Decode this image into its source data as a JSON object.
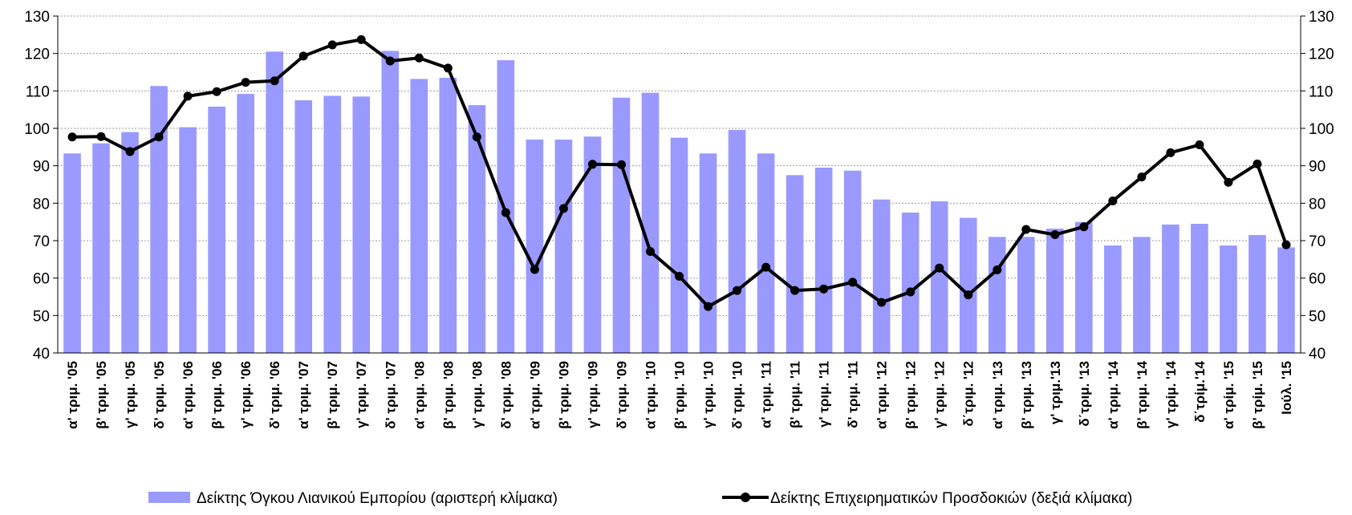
{
  "chart_data": {
    "type": "bar-line",
    "categories": [
      "α' τριμ. '05",
      "β' τριμ. '05",
      "γ' τριμ. '05",
      "δ' τριμ. '05",
      "α' τριμ. '06",
      "β' τριμ. '06",
      "γ' τριμ. '06",
      "δ' τριμ. '06",
      "α' τριμ. '07",
      "β' τριμ. '07",
      "γ' τριμ. '07",
      "δ' τριμ. '07",
      "α' τριμ. '08",
      "β' τριμ. '08",
      "γ' τριμ. '08",
      "δ' τριμ. '08",
      "α' τριμ. '09",
      "β' τριμ. '09",
      "γ' τριμ. '09",
      "δ' τριμ. '09",
      "α' τριμ. '10",
      "β' τριμ. '10",
      "γ' τριμ. '10",
      "δ' τριμ. '10",
      "α' τριμ. '11",
      "β' τριμ. '11",
      "γ' τριμ. '11",
      "δ' τριμ. '11",
      "α' τριμ. '12",
      "β' τριμ. '12",
      "γ' τριμ. '12",
      "δ΄τριμ. '12",
      "α' τριμ. '13",
      "β' τριμ. '13",
      "γ' τριμ.'13",
      "δ΄τριμ. '13",
      "α' τριμ. '14",
      "β' τριμ. '14",
      "γ' τρίμ. '14",
      "δ΄τρίμ.'14",
      "α' τρίμ. '15",
      "β' τρίμ. '15",
      "Ιούλ. '15"
    ],
    "series": [
      {
        "name": "Δείκτης Όγκου Λιανικού Εμπορίου (αριστερή κλίμακα)",
        "type": "bar",
        "color": "#9999ff",
        "values": [
          93.3,
          96,
          99,
          111.3,
          100.3,
          105.8,
          109.2,
          120.5,
          107.5,
          108.7,
          108.5,
          120.7,
          113.2,
          113.5,
          106.2,
          118.2,
          97,
          97,
          97.8,
          108.2,
          109.5,
          97.5,
          93.3,
          99.6,
          93.3,
          87.5,
          89.5,
          88.7,
          81,
          77.5,
          80.5,
          76.1,
          71,
          71,
          73.2,
          75,
          68.7,
          71,
          74.3,
          74.5,
          68.7,
          71.5,
          68.2
        ]
      },
      {
        "name": "Δείκτης Επιχειρηματικών Προσδοκιών (δεξιά κλίμακα)",
        "type": "line",
        "axis": "y2",
        "color": "#000000",
        "values": [
          97.7,
          97.8,
          93.8,
          97.7,
          108.6,
          109.8,
          112.3,
          112.7,
          119.3,
          122.3,
          123.7,
          118,
          118.8,
          116.1,
          97.7,
          77.5,
          62.3,
          78.6,
          90.4,
          90.3,
          67.1,
          60.5,
          52.4,
          56.7,
          62.9,
          56.7,
          57.1,
          58.9,
          53.5,
          56.3,
          62.7,
          55.5,
          62.2,
          73,
          71.6,
          73.7,
          80.6,
          87,
          93.5,
          95.6,
          85.6,
          90.5,
          68.9
        ]
      }
    ],
    "ylim": [
      40,
      130
    ],
    "yticks": [
      40,
      50,
      60,
      70,
      80,
      90,
      100,
      110,
      120,
      130
    ],
    "y2lim": [
      40,
      130
    ],
    "y2ticks": [
      40,
      50,
      60,
      70,
      80,
      90,
      100,
      110,
      120,
      130
    ],
    "grid": true,
    "legend": "bottom"
  }
}
